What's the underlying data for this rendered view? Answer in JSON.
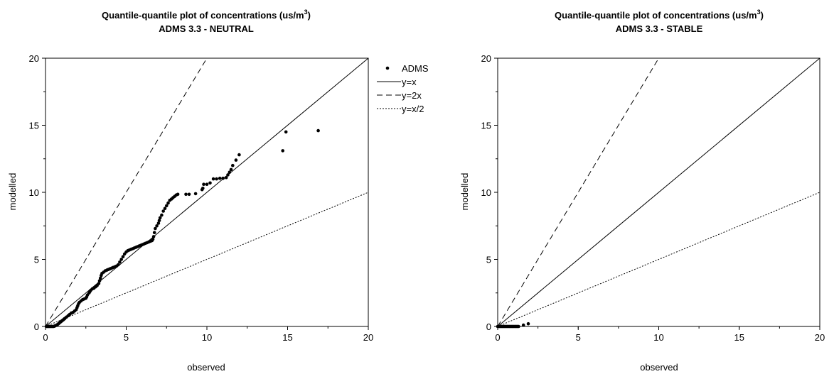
{
  "chart_data": [
    {
      "type": "scatter",
      "title_line1": "Quantile-quantile plot of concentrations (us/m",
      "title_sup": "3",
      "title_line1_end": ")",
      "title_line2": "ADMS 3.3 - NEUTRAL",
      "xlabel": "observed",
      "ylabel": "modelled",
      "xlim": [
        0,
        20
      ],
      "ylim": [
        0,
        20
      ],
      "xticks": [
        "0",
        "5",
        "10",
        "15",
        "20"
      ],
      "yticks": [
        "0",
        "5",
        "10",
        "15",
        "20"
      ],
      "grid": false,
      "legend_position": "outside-right",
      "series": [
        {
          "name": "ADMS",
          "style": "dots",
          "points": [
            [
              0.05,
              0.0
            ],
            [
              0.1,
              0.0
            ],
            [
              0.15,
              0.0
            ],
            [
              0.2,
              0.0
            ],
            [
              0.25,
              0.0
            ],
            [
              0.3,
              0.0
            ],
            [
              0.35,
              0.0
            ],
            [
              0.4,
              0.0
            ],
            [
              0.45,
              0.0
            ],
            [
              0.5,
              0.0
            ],
            [
              0.55,
              0.02
            ],
            [
              0.6,
              0.05
            ],
            [
              0.65,
              0.08
            ],
            [
              0.7,
              0.1
            ],
            [
              0.75,
              0.15
            ],
            [
              0.8,
              0.2
            ],
            [
              0.85,
              0.25
            ],
            [
              0.9,
              0.3
            ],
            [
              0.95,
              0.35
            ],
            [
              1.0,
              0.4
            ],
            [
              1.05,
              0.45
            ],
            [
              1.1,
              0.5
            ],
            [
              1.15,
              0.55
            ],
            [
              1.2,
              0.6
            ],
            [
              1.3,
              0.7
            ],
            [
              1.4,
              0.8
            ],
            [
              1.5,
              0.9
            ],
            [
              1.6,
              1.0
            ],
            [
              1.7,
              1.05
            ],
            [
              1.8,
              1.15
            ],
            [
              1.9,
              1.25
            ],
            [
              1.95,
              1.4
            ],
            [
              2.0,
              1.55
            ],
            [
              2.05,
              1.7
            ],
            [
              2.1,
              1.8
            ],
            [
              2.2,
              1.9
            ],
            [
              2.3,
              2.0
            ],
            [
              2.4,
              2.05
            ],
            [
              2.5,
              2.1
            ],
            [
              2.55,
              2.2
            ],
            [
              2.6,
              2.35
            ],
            [
              2.7,
              2.5
            ],
            [
              2.75,
              2.6
            ],
            [
              2.8,
              2.7
            ],
            [
              2.9,
              2.8
            ],
            [
              3.0,
              2.85
            ],
            [
              3.1,
              2.95
            ],
            [
              3.2,
              3.05
            ],
            [
              3.3,
              3.2
            ],
            [
              3.35,
              3.4
            ],
            [
              3.4,
              3.6
            ],
            [
              3.45,
              3.8
            ],
            [
              3.5,
              3.95
            ],
            [
              3.6,
              4.05
            ],
            [
              3.7,
              4.15
            ],
            [
              3.8,
              4.2
            ],
            [
              3.9,
              4.25
            ],
            [
              4.0,
              4.3
            ],
            [
              4.1,
              4.35
            ],
            [
              4.2,
              4.4
            ],
            [
              4.3,
              4.45
            ],
            [
              4.4,
              4.5
            ],
            [
              4.5,
              4.6
            ],
            [
              4.6,
              4.8
            ],
            [
              4.7,
              5.0
            ],
            [
              4.8,
              5.2
            ],
            [
              4.9,
              5.4
            ],
            [
              5.0,
              5.55
            ],
            [
              5.1,
              5.65
            ],
            [
              5.2,
              5.7
            ],
            [
              5.3,
              5.75
            ],
            [
              5.4,
              5.8
            ],
            [
              5.5,
              5.85
            ],
            [
              5.6,
              5.9
            ],
            [
              5.7,
              5.95
            ],
            [
              5.8,
              6.0
            ],
            [
              5.9,
              6.05
            ],
            [
              6.0,
              6.1
            ],
            [
              6.1,
              6.15
            ],
            [
              6.2,
              6.2
            ],
            [
              6.3,
              6.25
            ],
            [
              6.4,
              6.3
            ],
            [
              6.5,
              6.35
            ],
            [
              6.6,
              6.4
            ],
            [
              6.65,
              6.5
            ],
            [
              6.7,
              6.7
            ],
            [
              6.75,
              7.0
            ],
            [
              6.8,
              7.3
            ],
            [
              6.9,
              7.5
            ],
            [
              7.0,
              7.7
            ],
            [
              7.05,
              7.9
            ],
            [
              7.1,
              8.1
            ],
            [
              7.2,
              8.3
            ],
            [
              7.3,
              8.6
            ],
            [
              7.4,
              8.8
            ],
            [
              7.5,
              9.0
            ],
            [
              7.6,
              9.2
            ],
            [
              7.7,
              9.4
            ],
            [
              7.8,
              9.5
            ],
            [
              7.9,
              9.6
            ],
            [
              8.0,
              9.7
            ],
            [
              8.1,
              9.8
            ],
            [
              8.2,
              9.85
            ],
            [
              8.7,
              9.85
            ],
            [
              8.9,
              9.85
            ],
            [
              9.3,
              9.9
            ],
            [
              9.7,
              10.2
            ],
            [
              9.75,
              10.3
            ],
            [
              9.8,
              10.6
            ],
            [
              10.0,
              10.6
            ],
            [
              10.2,
              10.7
            ],
            [
              10.4,
              11.0
            ],
            [
              10.6,
              11.0
            ],
            [
              10.8,
              11.05
            ],
            [
              11.0,
              11.05
            ],
            [
              11.2,
              11.1
            ],
            [
              11.3,
              11.3
            ],
            [
              11.4,
              11.5
            ],
            [
              11.5,
              11.7
            ],
            [
              11.6,
              12.0
            ],
            [
              11.8,
              12.4
            ],
            [
              12.0,
              12.8
            ],
            [
              14.7,
              13.1
            ],
            [
              14.9,
              14.5
            ],
            [
              16.9,
              14.6
            ]
          ]
        },
        {
          "name": "y=x",
          "style": "solid",
          "slope": 1
        },
        {
          "name": "y=2x",
          "style": "dashed",
          "slope": 2
        },
        {
          "name": "y=x/2",
          "style": "dotted",
          "slope": 0.5
        }
      ]
    },
    {
      "type": "scatter",
      "title_line1": "Quantile-quantile plot of concentrations (us/m",
      "title_sup": "3",
      "title_line1_end": ")",
      "title_line2": "ADMS 3.3 - STABLE",
      "xlabel": "observed",
      "ylabel": "modelled",
      "xlim": [
        0,
        20
      ],
      "ylim": [
        0,
        20
      ],
      "xticks": [
        "0",
        "5",
        "10",
        "15",
        "20"
      ],
      "yticks": [
        "0",
        "5",
        "10",
        "15",
        "20"
      ],
      "grid": false,
      "series": [
        {
          "name": "ADMS",
          "style": "dots",
          "points": [
            [
              0.0,
              0.0
            ],
            [
              0.05,
              0.0
            ],
            [
              0.1,
              0.0
            ],
            [
              0.15,
              0.0
            ],
            [
              0.2,
              0.0
            ],
            [
              0.25,
              0.0
            ],
            [
              0.3,
              0.0
            ],
            [
              0.35,
              0.0
            ],
            [
              0.4,
              0.0
            ],
            [
              0.45,
              0.0
            ],
            [
              0.5,
              0.0
            ],
            [
              0.55,
              0.0
            ],
            [
              0.6,
              0.0
            ],
            [
              0.65,
              0.0
            ],
            [
              0.7,
              0.0
            ],
            [
              0.75,
              0.0
            ],
            [
              0.8,
              0.0
            ],
            [
              0.85,
              0.0
            ],
            [
              0.9,
              0.0
            ],
            [
              0.95,
              0.0
            ],
            [
              1.0,
              0.0
            ],
            [
              1.05,
              0.0
            ],
            [
              1.1,
              0.0
            ],
            [
              1.15,
              0.0
            ],
            [
              1.2,
              0.0
            ],
            [
              1.25,
              0.0
            ],
            [
              1.3,
              0.0
            ],
            [
              1.6,
              0.1
            ],
            [
              1.9,
              0.2
            ]
          ]
        },
        {
          "name": "y=x",
          "style": "solid",
          "slope": 1
        },
        {
          "name": "y=2x",
          "style": "dashed",
          "slope": 2
        },
        {
          "name": "y=x/2",
          "style": "dotted",
          "slope": 0.5
        }
      ]
    }
  ]
}
